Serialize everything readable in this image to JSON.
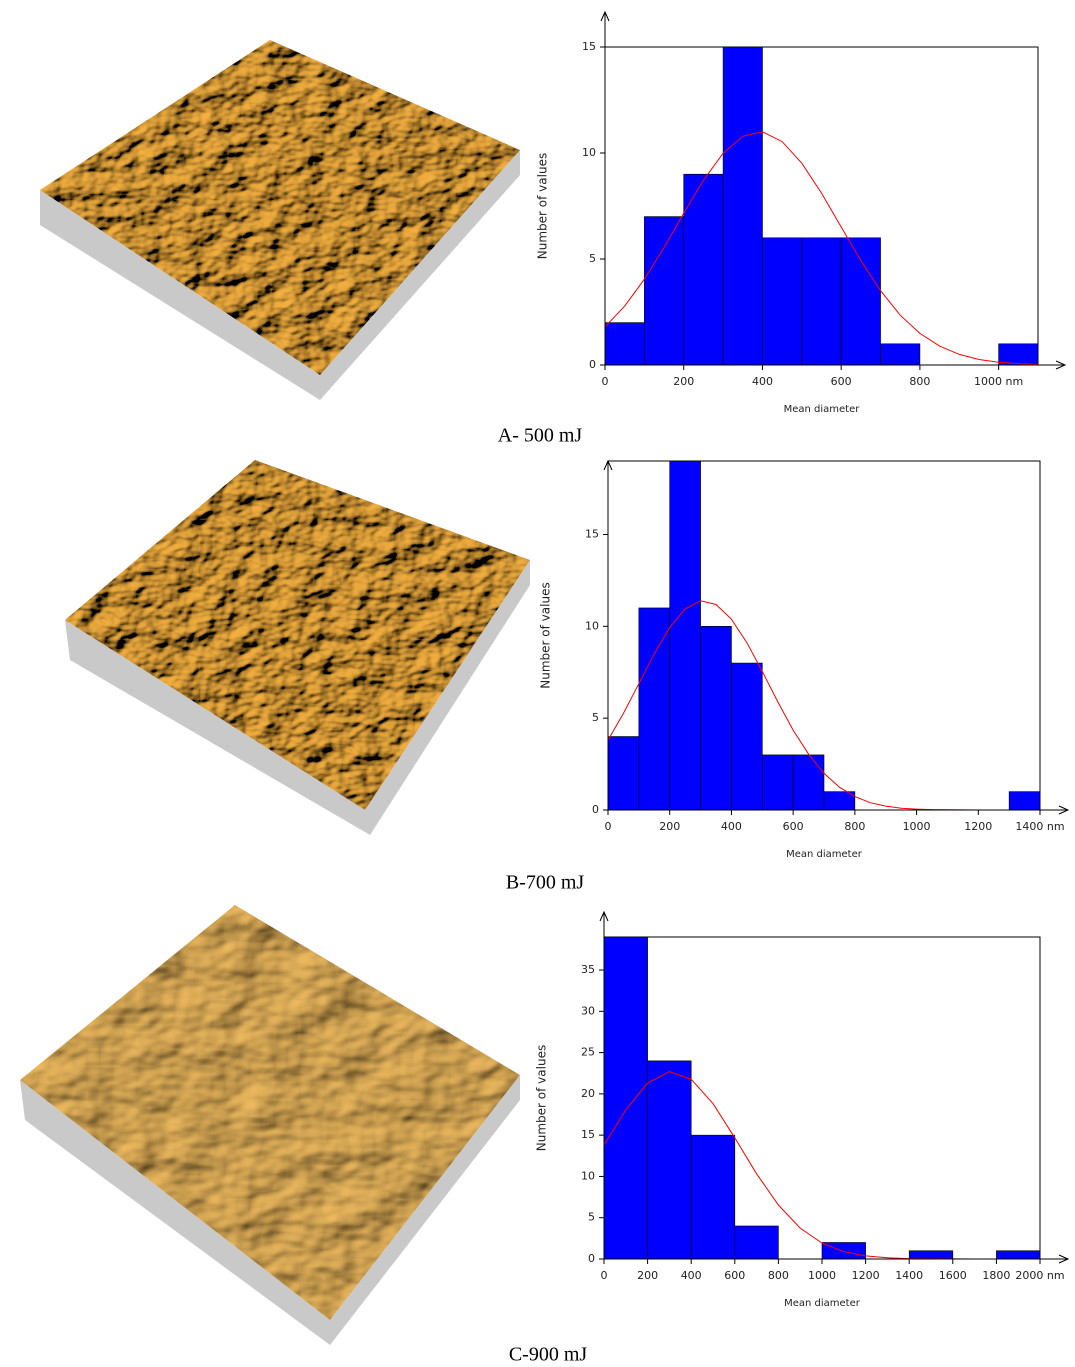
{
  "chart_data": [
    {
      "type": "histogram",
      "caption": "A- 500 mJ",
      "x_label": "Mean diameter",
      "y_label": "Number of values",
      "color": "#0000ff",
      "bins": [
        0,
        100,
        200,
        300,
        400,
        500,
        600,
        700,
        800,
        900,
        1000,
        1100
      ],
      "values": [
        2,
        7,
        9,
        15,
        6,
        6,
        6,
        1,
        0,
        0,
        1
      ],
      "curve": {
        "color": "#ff0000",
        "x": [
          0,
          50,
          100,
          150,
          200,
          250,
          300,
          350,
          400,
          450,
          500,
          550,
          600,
          650,
          700,
          750,
          800,
          850,
          900,
          950,
          1000,
          1050,
          1100
        ],
        "values": [
          1.8,
          2.78,
          4.05,
          5.54,
          7.16,
          8.71,
          9.99,
          10.79,
          11.0,
          10.54,
          9.52,
          8.11,
          6.51,
          4.92,
          3.51,
          2.35,
          1.49,
          0.89,
          0.5,
          0.26,
          0.13,
          0.06,
          0.03
        ]
      },
      "xlim": [
        0,
        1100
      ],
      "ylim": [
        0,
        15
      ],
      "xticks": [
        0,
        200,
        400,
        600,
        800,
        {
          "value": 1000,
          "label": "1000 nm"
        }
      ],
      "yticks": [
        0,
        5,
        10,
        15
      ]
    },
    {
      "type": "histogram",
      "caption": "B-700 mJ",
      "x_label": "Mean diameter",
      "y_label": "Number of values",
      "color": "#0000ff",
      "bins": [
        0,
        100,
        200,
        300,
        400,
        500,
        600,
        700,
        800,
        900,
        1000,
        1100,
        1200,
        1300,
        1400
      ],
      "values": [
        4,
        11,
        19,
        10,
        8,
        3,
        3,
        1,
        0,
        0,
        0,
        0,
        0,
        1
      ],
      "curve": {
        "color": "#ff0000",
        "x": [
          0,
          50,
          100,
          150,
          200,
          250,
          300,
          350,
          400,
          450,
          500,
          550,
          600,
          650,
          700,
          750,
          800,
          850,
          900,
          950,
          1000,
          1050,
          1100,
          1200,
          1300,
          1400
        ],
        "values": [
          3.8,
          5.26,
          6.88,
          8.51,
          9.93,
          10.94,
          11.39,
          11.19,
          10.39,
          9.11,
          7.54,
          5.9,
          4.35,
          3.04,
          2.0,
          1.24,
          0.73,
          0.4,
          0.21,
          0.1,
          0.05,
          0.02,
          0.01,
          0,
          0,
          0
        ]
      },
      "xlim": [
        0,
        1400
      ],
      "ylim": [
        0,
        19
      ],
      "xticks": [
        0,
        200,
        400,
        600,
        800,
        1000,
        1200,
        {
          "value": 1400,
          "label": "1400 nm"
        }
      ],
      "yticks": [
        0,
        5,
        10,
        15
      ]
    },
    {
      "type": "histogram",
      "caption": "C-900 mJ",
      "x_label": "Mean diameter",
      "y_label": "Number of values",
      "color": "#0000ff",
      "bins": [
        0,
        200,
        400,
        600,
        800,
        1000,
        1200,
        1400,
        1600,
        1800,
        2000
      ],
      "values": [
        39,
        24,
        15,
        4,
        0,
        2,
        0,
        1,
        0,
        1
      ],
      "curve": {
        "color": "#ff0000",
        "x": [
          0,
          100,
          200,
          300,
          400,
          500,
          600,
          700,
          800,
          900,
          1000,
          1100,
          1200,
          1300,
          1400,
          1500,
          1600,
          1700,
          1800,
          1900,
          2000
        ],
        "values": [
          13.8,
          18.06,
          21.32,
          22.7,
          21.77,
          18.82,
          14.68,
          10.32,
          6.54,
          3.74,
          1.93,
          0.89,
          0.37,
          0.14,
          0.05,
          0.02,
          0.01,
          0,
          0,
          0,
          0
        ]
      },
      "xlim": [
        0,
        2000
      ],
      "ylim": [
        0,
        39
      ],
      "xticks": [
        0,
        200,
        400,
        600,
        800,
        1000,
        1200,
        1400,
        1600,
        1800,
        {
          "value": 2000,
          "label": "2000 nm"
        }
      ],
      "yticks": [
        0,
        5,
        10,
        15,
        20,
        25,
        30,
        35
      ]
    }
  ]
}
